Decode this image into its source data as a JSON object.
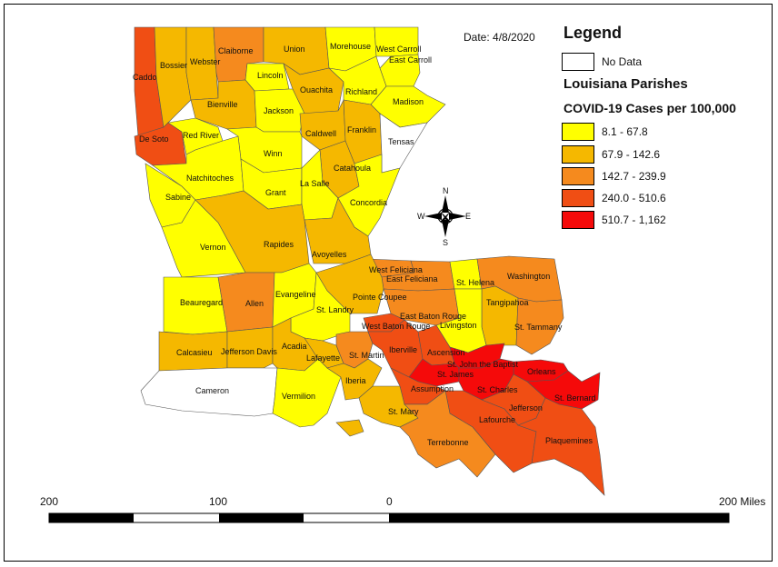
{
  "date_label": "Date: 4/8/2020",
  "legend": {
    "title": "Legend",
    "no_data": {
      "label": "No Data",
      "color": "#ffffff"
    },
    "subtitle": "Louisiana Parishes",
    "metric_title": "COVID-19 Cases per 100,000",
    "classes": [
      {
        "label": "8.1 - 67.8",
        "color": "#ffff00"
      },
      {
        "label": "67.9 - 142.6",
        "color": "#f5b800"
      },
      {
        "label": "142.7 - 239.9",
        "color": "#f58a1e"
      },
      {
        "label": "240.0 - 510.6",
        "color": "#f04e14"
      },
      {
        "label": "510.7 - 1,162",
        "color": "#f50a0a"
      }
    ]
  },
  "compass": {
    "n": "N",
    "s": "S",
    "e": "E",
    "w": "W"
  },
  "scale_bar": {
    "labels": [
      "200",
      "100",
      "0",
      "200 Miles"
    ]
  },
  "parishes": [
    {
      "name": "Caddo",
      "class": 3
    },
    {
      "name": "Bossier",
      "class": 1
    },
    {
      "name": "Webster",
      "class": 1
    },
    {
      "name": "Claiborne",
      "class": 2
    },
    {
      "name": "Union",
      "class": 1
    },
    {
      "name": "Morehouse",
      "class": 0
    },
    {
      "name": "West Carroll",
      "class": 0
    },
    {
      "name": "East Carroll",
      "class": 0
    },
    {
      "name": "Lincoln",
      "class": 0
    },
    {
      "name": "Ouachita",
      "class": 1
    },
    {
      "name": "Richland",
      "class": 0
    },
    {
      "name": "Madison",
      "class": 0
    },
    {
      "name": "Bienville",
      "class": 1
    },
    {
      "name": "Jackson",
      "class": 0
    },
    {
      "name": "Caldwell",
      "class": 1
    },
    {
      "name": "Franklin",
      "class": 1
    },
    {
      "name": "Tensas",
      "class": -1
    },
    {
      "name": "De Soto",
      "class": 3
    },
    {
      "name": "Red River",
      "class": 0
    },
    {
      "name": "Winn",
      "class": 0
    },
    {
      "name": "Catahoula",
      "class": 1
    },
    {
      "name": "Natchitoches",
      "class": 0
    },
    {
      "name": "Grant",
      "class": 0
    },
    {
      "name": "La Salle",
      "class": 0
    },
    {
      "name": "Concordia",
      "class": 0
    },
    {
      "name": "Sabine",
      "class": 0
    },
    {
      "name": "Rapides",
      "class": 1
    },
    {
      "name": "Avoyelles",
      "class": 1
    },
    {
      "name": "Vernon",
      "class": 0
    },
    {
      "name": "West Feliciana",
      "class": 2
    },
    {
      "name": "East Feliciana",
      "class": 2
    },
    {
      "name": "St. Helena",
      "class": 0
    },
    {
      "name": "Washington",
      "class": 2
    },
    {
      "name": "Beauregard",
      "class": 0
    },
    {
      "name": "Allen",
      "class": 2
    },
    {
      "name": "Evangeline",
      "class": 0
    },
    {
      "name": "Pointe Coupee",
      "class": 1
    },
    {
      "name": "Tangipahoa",
      "class": 1
    },
    {
      "name": "St. Landry",
      "class": 0
    },
    {
      "name": "East Baton Rouge",
      "class": 2
    },
    {
      "name": "St. Tammany",
      "class": 2
    },
    {
      "name": "West Baton Rouge",
      "class": 3
    },
    {
      "name": "Livingston",
      "class": 0
    },
    {
      "name": "Calcasieu",
      "class": 1
    },
    {
      "name": "Jefferson Davis",
      "class": 1
    },
    {
      "name": "Acadia",
      "class": 1
    },
    {
      "name": "Lafayette",
      "class": 1
    },
    {
      "name": "St. Martin",
      "class": 2
    },
    {
      "name": "Iberville",
      "class": 3
    },
    {
      "name": "Ascension",
      "class": 3
    },
    {
      "name": "St. John the Baptist",
      "class": 4
    },
    {
      "name": "St. James",
      "class": 4
    },
    {
      "name": "Orleans",
      "class": 4
    },
    {
      "name": "Cameron",
      "class": -1
    },
    {
      "name": "Vermilion",
      "class": 0
    },
    {
      "name": "Iberia",
      "class": 1
    },
    {
      "name": "Assumption",
      "class": 3
    },
    {
      "name": "St. Charles",
      "class": 4
    },
    {
      "name": "St. Bernard",
      "class": 4
    },
    {
      "name": "St. Mary",
      "class": 1
    },
    {
      "name": "Jefferson",
      "class": 3
    },
    {
      "name": "Lafourche",
      "class": 3
    },
    {
      "name": "Terrebonne",
      "class": 2
    },
    {
      "name": "Plaquemines",
      "class": 3
    }
  ]
}
